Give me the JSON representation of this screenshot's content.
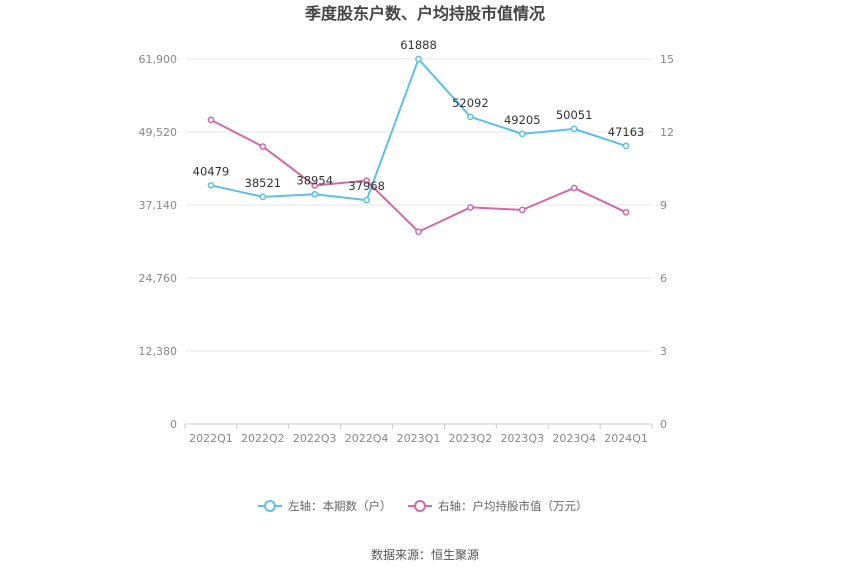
{
  "chart_data": {
    "type": "line",
    "title": "季度股东户数、户均持股市值情况",
    "categories": [
      "2022Q1",
      "2022Q2",
      "2022Q3",
      "2022Q4",
      "2023Q1",
      "2023Q2",
      "2023Q3",
      "2023Q4",
      "2024Q1"
    ],
    "series": [
      {
        "name": "左轴：本期数（户）",
        "axis": "left",
        "color": "#5bc0eb",
        "values": [
          40479,
          38521,
          38954,
          37968,
          61888,
          52092,
          49205,
          50051,
          47163
        ],
        "labels": [
          "40479",
          "38521",
          "38954",
          "37968",
          "61888",
          "52092",
          "49205",
          "50051",
          "47163"
        ]
      },
      {
        "name": "右轴：户均持股市值（万元）",
        "axis": "right",
        "color": "#d468a8",
        "values": [
          12.5,
          11.4,
          9.8,
          10.0,
          7.9,
          8.9,
          8.8,
          9.7,
          8.7
        ]
      }
    ],
    "y_left": {
      "min": 0,
      "max": 61900,
      "ticks": [
        0,
        12380,
        24760,
        37140,
        49520,
        61900
      ],
      "tick_labels": [
        "0",
        "12,380",
        "24,760",
        "37,140",
        "49,520",
        "61,900"
      ]
    },
    "y_right": {
      "min": 0,
      "max": 15,
      "ticks": [
        0,
        3,
        6,
        9,
        12,
        15
      ],
      "tick_labels": [
        "0",
        "3",
        "6",
        "9",
        "12",
        "15"
      ]
    },
    "grid": true,
    "legend_position": "bottom"
  },
  "source": "数据来源：恒生聚源"
}
